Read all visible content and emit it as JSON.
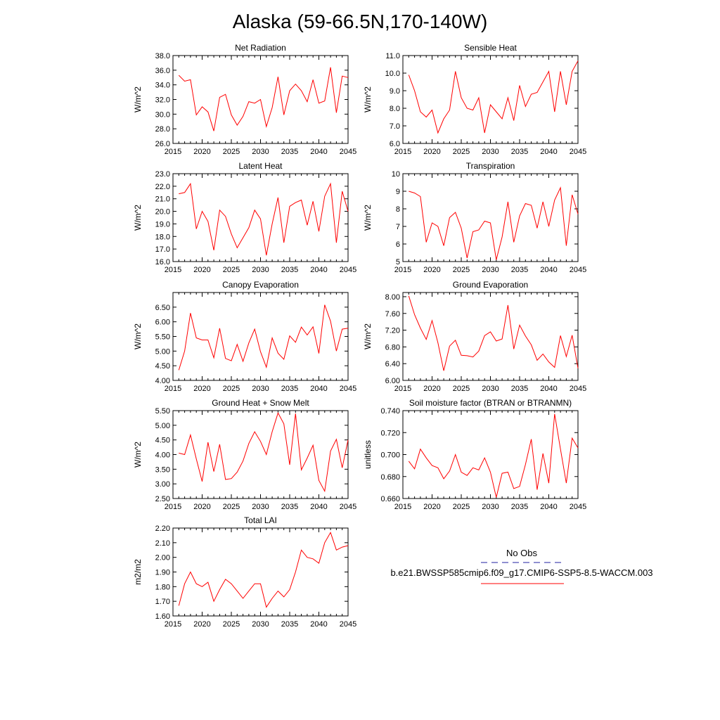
{
  "figure_title": "Alaska (59-66.5N,170-140W)",
  "legend": {
    "entries": [
      {
        "label": "No Obs",
        "color": "#1f1fa0",
        "dash": true
      },
      {
        "label": "b.e21.BWSSP585cmip6.f09_g17.CMIP6-SSP5-8.5-WACCM.003",
        "color": "#ff0000",
        "dash": false
      }
    ]
  },
  "chart_data": [
    {
      "type": "line",
      "title": "Net Radiation",
      "ylabel": "W/m^2",
      "ylim": [
        26,
        38
      ],
      "yticks": [
        "26.0",
        "28.0",
        "30.0",
        "32.0",
        "34.0",
        "36.0",
        "38.0"
      ],
      "xlim": [
        2015,
        2045
      ],
      "xticks": [
        "2015",
        "2020",
        "2025",
        "2030",
        "2035",
        "2040",
        "2045"
      ],
      "x": [
        2016,
        2017,
        2018,
        2019,
        2020,
        2021,
        2022,
        2023,
        2024,
        2025,
        2026,
        2027,
        2028,
        2029,
        2030,
        2031,
        2032,
        2033,
        2034,
        2035,
        2036,
        2037,
        2038,
        2039,
        2040,
        2041,
        2042,
        2043,
        2044,
        2045
      ],
      "series": [
        {
          "values": [
            35.3,
            34.5,
            34.7,
            29.9,
            31.0,
            30.3,
            27.7,
            32.3,
            32.7,
            29.9,
            28.5,
            29.7,
            31.7,
            31.5,
            32.0,
            28.3,
            30.9,
            35.1,
            29.9,
            33.2,
            34.1,
            33.2,
            31.7,
            34.7,
            31.5,
            31.8,
            36.4,
            30.2,
            35.2,
            35.0
          ],
          "color": "#ff0000"
        }
      ]
    },
    {
      "type": "line",
      "title": "Sensible Heat",
      "ylabel": "W/m^2",
      "ylim": [
        6,
        11
      ],
      "yticks": [
        "6.0",
        "7.0",
        "8.0",
        "9.0",
        "10.0",
        "11.0"
      ],
      "xlim": [
        2015,
        2045
      ],
      "xticks": [
        "2015",
        "2020",
        "2025",
        "2030",
        "2035",
        "2040",
        "2045"
      ],
      "x": [
        2016,
        2017,
        2018,
        2019,
        2020,
        2021,
        2022,
        2023,
        2024,
        2025,
        2026,
        2027,
        2028,
        2029,
        2030,
        2031,
        2032,
        2033,
        2034,
        2035,
        2036,
        2037,
        2038,
        2039,
        2040,
        2041,
        2042,
        2043,
        2044,
        2045
      ],
      "series": [
        {
          "values": [
            9.9,
            9.0,
            7.8,
            7.5,
            7.9,
            6.6,
            7.4,
            7.9,
            10.1,
            8.6,
            8.0,
            7.9,
            8.6,
            6.6,
            8.2,
            7.8,
            7.4,
            8.6,
            7.3,
            9.3,
            8.1,
            8.8,
            8.9,
            9.5,
            10.1,
            7.8,
            10.1,
            8.2,
            10.1,
            10.7
          ],
          "color": "#ff0000"
        }
      ]
    },
    {
      "type": "line",
      "title": "Latent Heat",
      "ylabel": "W/m^2",
      "ylim": [
        16,
        23
      ],
      "yticks": [
        "16.0",
        "17.0",
        "18.0",
        "19.0",
        "20.0",
        "21.0",
        "22.0",
        "23.0"
      ],
      "xlim": [
        2015,
        2045
      ],
      "xticks": [
        "2015",
        "2020",
        "2025",
        "2030",
        "2035",
        "2040",
        "2045"
      ],
      "x": [
        2016,
        2017,
        2018,
        2019,
        2020,
        2021,
        2022,
        2023,
        2024,
        2025,
        2026,
        2027,
        2028,
        2029,
        2030,
        2031,
        2032,
        2033,
        2034,
        2035,
        2036,
        2037,
        2038,
        2039,
        2040,
        2041,
        2042,
        2043,
        2044,
        2045
      ],
      "series": [
        {
          "values": [
            21.4,
            21.5,
            22.2,
            18.6,
            20.0,
            19.2,
            16.9,
            20.1,
            19.6,
            18.2,
            17.1,
            17.9,
            18.7,
            20.1,
            19.4,
            16.5,
            19.0,
            21.1,
            17.5,
            20.4,
            20.7,
            20.9,
            18.9,
            20.8,
            18.4,
            21.2,
            22.2,
            17.5,
            21.6,
            20.0
          ],
          "color": "#ff0000"
        }
      ]
    },
    {
      "type": "line",
      "title": "Transpiration",
      "ylabel": "W/m^2",
      "ylim": [
        5,
        10
      ],
      "yticks": [
        "5",
        "6",
        "7",
        "8",
        "9",
        "10"
      ],
      "xlim": [
        2015,
        2045
      ],
      "xticks": [
        "2015",
        "2020",
        "2025",
        "2030",
        "2035",
        "2040",
        "2045"
      ],
      "x": [
        2016,
        2017,
        2018,
        2019,
        2020,
        2021,
        2022,
        2023,
        2024,
        2025,
        2026,
        2027,
        2028,
        2029,
        2030,
        2031,
        2032,
        2033,
        2034,
        2035,
        2036,
        2037,
        2038,
        2039,
        2040,
        2041,
        2042,
        2043,
        2044,
        2045
      ],
      "series": [
        {
          "values": [
            9.0,
            8.9,
            8.7,
            6.1,
            7.2,
            7.0,
            5.9,
            7.5,
            7.8,
            6.9,
            5.2,
            6.7,
            6.8,
            7.3,
            7.2,
            5.1,
            6.4,
            8.4,
            6.1,
            7.6,
            8.3,
            8.2,
            6.9,
            8.4,
            7.0,
            8.5,
            9.2,
            5.9,
            8.8,
            7.7
          ],
          "color": "#ff0000"
        }
      ]
    },
    {
      "type": "line",
      "title": "Canopy Evaporation",
      "ylabel": "W/m^2",
      "ylim": [
        4,
        7
      ],
      "yticks": [
        "4.00",
        "4.50",
        "5.00",
        "5.50",
        "6.00",
        "6.50"
      ],
      "xlim": [
        2015,
        2045
      ],
      "xticks": [
        "2015",
        "2020",
        "2025",
        "2030",
        "2035",
        "2040",
        "2045"
      ],
      "x": [
        2016,
        2017,
        2018,
        2019,
        2020,
        2021,
        2022,
        2023,
        2024,
        2025,
        2026,
        2027,
        2028,
        2029,
        2030,
        2031,
        2032,
        2033,
        2034,
        2035,
        2036,
        2037,
        2038,
        2039,
        2040,
        2041,
        2042,
        2043,
        2044,
        2045
      ],
      "series": [
        {
          "values": [
            4.35,
            5.0,
            6.3,
            5.45,
            5.38,
            5.38,
            4.77,
            5.78,
            4.75,
            4.67,
            5.23,
            4.65,
            5.28,
            5.75,
            4.98,
            4.45,
            5.45,
            4.93,
            4.72,
            5.52,
            5.3,
            5.82,
            5.55,
            5.83,
            4.92,
            6.58,
            6.02,
            5.0,
            5.75,
            5.78
          ],
          "color": "#ff0000"
        }
      ]
    },
    {
      "type": "line",
      "title": "Ground Evaporation",
      "ylabel": "W/m^2",
      "ylim": [
        6,
        8.1
      ],
      "yticks": [
        "6.00",
        "6.40",
        "6.80",
        "7.20",
        "7.60",
        "8.00"
      ],
      "xlim": [
        2015,
        2045
      ],
      "xticks": [
        "2015",
        "2020",
        "2025",
        "2030",
        "2035",
        "2040",
        "2045"
      ],
      "x": [
        2016,
        2017,
        2018,
        2019,
        2020,
        2021,
        2022,
        2023,
        2024,
        2025,
        2026,
        2027,
        2028,
        2029,
        2030,
        2031,
        2032,
        2033,
        2034,
        2035,
        2036,
        2037,
        2038,
        2039,
        2040,
        2041,
        2042,
        2043,
        2044,
        2045
      ],
      "series": [
        {
          "values": [
            8.02,
            7.57,
            7.25,
            6.98,
            7.43,
            6.9,
            6.23,
            6.82,
            6.96,
            6.6,
            6.59,
            6.56,
            6.7,
            7.07,
            7.16,
            6.94,
            6.99,
            7.8,
            6.75,
            7.32,
            7.06,
            6.85,
            6.48,
            6.63,
            6.44,
            6.31,
            7.07,
            6.57,
            7.08,
            6.29
          ],
          "color": "#ff0000"
        }
      ]
    },
    {
      "type": "line",
      "title": "Ground Heat + Snow Melt",
      "ylabel": "W/m^2",
      "ylim": [
        2.5,
        5.5
      ],
      "yticks": [
        "2.50",
        "3.00",
        "3.50",
        "4.00",
        "4.50",
        "5.00",
        "5.50"
      ],
      "xlim": [
        2015,
        2045
      ],
      "xticks": [
        "2015",
        "2020",
        "2025",
        "2030",
        "2035",
        "2040",
        "2045"
      ],
      "x": [
        2016,
        2017,
        2018,
        2019,
        2020,
        2021,
        2022,
        2023,
        2024,
        2025,
        2026,
        2027,
        2028,
        2029,
        2030,
        2031,
        2032,
        2033,
        2034,
        2035,
        2036,
        2037,
        2038,
        2039,
        2040,
        2041,
        2042,
        2043,
        2044,
        2045
      ],
      "series": [
        {
          "values": [
            4.05,
            4.0,
            4.67,
            3.85,
            3.08,
            4.42,
            3.42,
            4.35,
            3.15,
            3.18,
            3.4,
            3.78,
            4.38,
            4.78,
            4.45,
            4.0,
            4.78,
            5.42,
            5.05,
            3.65,
            5.4,
            3.48,
            3.88,
            4.32,
            3.12,
            2.75,
            4.12,
            4.52,
            3.55,
            4.5
          ],
          "color": "#ff0000"
        }
      ]
    },
    {
      "type": "line",
      "title": "Soil moisture factor (BTRAN or BTRANMN)",
      "ylabel": "unitless",
      "ylim": [
        0.66,
        0.74
      ],
      "yticks": [
        "0.660",
        "0.680",
        "0.700",
        "0.720",
        "0.740"
      ],
      "xlim": [
        2015,
        2045
      ],
      "xticks": [
        "2015",
        "2020",
        "2025",
        "2030",
        "2035",
        "2040",
        "2045"
      ],
      "x": [
        2016,
        2017,
        2018,
        2019,
        2020,
        2021,
        2022,
        2023,
        2024,
        2025,
        2026,
        2027,
        2028,
        2029,
        2030,
        2031,
        2032,
        2033,
        2034,
        2035,
        2036,
        2037,
        2038,
        2039,
        2040,
        2041,
        2042,
        2043,
        2044,
        2045
      ],
      "series": [
        {
          "values": [
            0.694,
            0.687,
            0.705,
            0.697,
            0.69,
            0.688,
            0.678,
            0.685,
            0.7,
            0.684,
            0.681,
            0.688,
            0.686,
            0.697,
            0.684,
            0.661,
            0.683,
            0.684,
            0.669,
            0.671,
            0.691,
            0.714,
            0.668,
            0.701,
            0.674,
            0.737,
            0.705,
            0.674,
            0.715,
            0.706
          ],
          "color": "#ff0000"
        }
      ]
    },
    {
      "type": "line",
      "title": "Total LAI",
      "ylabel": "m2/m2",
      "ylim": [
        1.6,
        2.2
      ],
      "yticks": [
        "1.60",
        "1.70",
        "1.80",
        "1.90",
        "2.00",
        "2.10",
        "2.20"
      ],
      "xlim": [
        2015,
        2045
      ],
      "xticks": [
        "2015",
        "2020",
        "2025",
        "2030",
        "2035",
        "2040",
        "2045"
      ],
      "x": [
        2016,
        2017,
        2018,
        2019,
        2020,
        2021,
        2022,
        2023,
        2024,
        2025,
        2026,
        2027,
        2028,
        2029,
        2030,
        2031,
        2032,
        2033,
        2034,
        2035,
        2036,
        2037,
        2038,
        2039,
        2040,
        2041,
        2042,
        2043,
        2044,
        2045
      ],
      "series": [
        {
          "values": [
            1.67,
            1.82,
            1.9,
            1.82,
            1.8,
            1.83,
            1.7,
            1.78,
            1.85,
            1.82,
            1.77,
            1.72,
            1.77,
            1.82,
            1.82,
            1.66,
            1.72,
            1.77,
            1.73,
            1.78,
            1.9,
            2.05,
            2.0,
            1.99,
            1.96,
            2.1,
            2.17,
            2.05,
            2.07,
            2.08
          ],
          "color": "#ff0000"
        }
      ]
    }
  ]
}
